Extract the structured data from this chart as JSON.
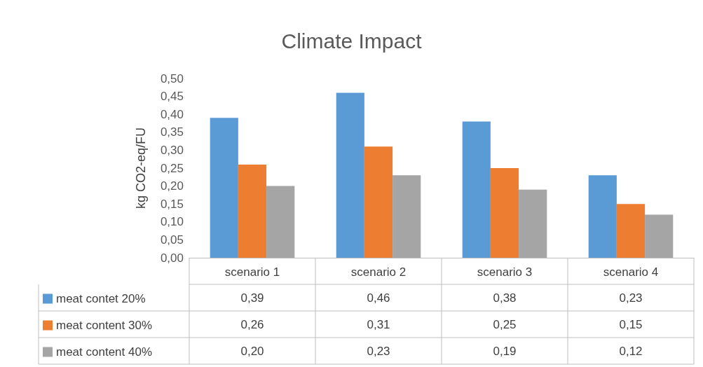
{
  "chart_data": {
    "type": "bar",
    "title": "Climate Impact",
    "ylabel": "kg CO2-eq/FU",
    "categories": [
      "scenario 1",
      "scenario 2",
      "scenario 3",
      "scenario 4"
    ],
    "series": [
      {
        "name": "meat contet 20%",
        "color": "#5b9bd5",
        "values": [
          0.39,
          0.46,
          0.38,
          0.23
        ],
        "value_labels": [
          "0,39",
          "0,46",
          "0,38",
          "0,23"
        ]
      },
      {
        "name": "meat content 30%",
        "color": "#ed7d31",
        "values": [
          0.26,
          0.31,
          0.25,
          0.15
        ],
        "value_labels": [
          "0,26",
          "0,31",
          "0,25",
          "0,15"
        ]
      },
      {
        "name": "meat content 40%",
        "color": "#a5a5a5",
        "values": [
          0.2,
          0.23,
          0.19,
          0.12
        ],
        "value_labels": [
          "0,20",
          "0,23",
          "0,19",
          "0,12"
        ]
      }
    ],
    "ylim": [
      0,
      0.5
    ],
    "yticks": [
      {
        "value": 0,
        "label": "0,00"
      },
      {
        "value": 0.05,
        "label": "0,05"
      },
      {
        "value": 0.1,
        "label": "0,10"
      },
      {
        "value": 0.15,
        "label": "0,15"
      },
      {
        "value": 0.2,
        "label": "0,20"
      },
      {
        "value": 0.25,
        "label": "0,25"
      },
      {
        "value": 0.3,
        "label": "0,30"
      },
      {
        "value": 0.35,
        "label": "0,35"
      },
      {
        "value": 0.4,
        "label": "0,40"
      },
      {
        "value": 0.45,
        "label": "0,45"
      },
      {
        "value": 0.5,
        "label": "0,50"
      }
    ],
    "grid": false,
    "legend": "bottom left"
  }
}
